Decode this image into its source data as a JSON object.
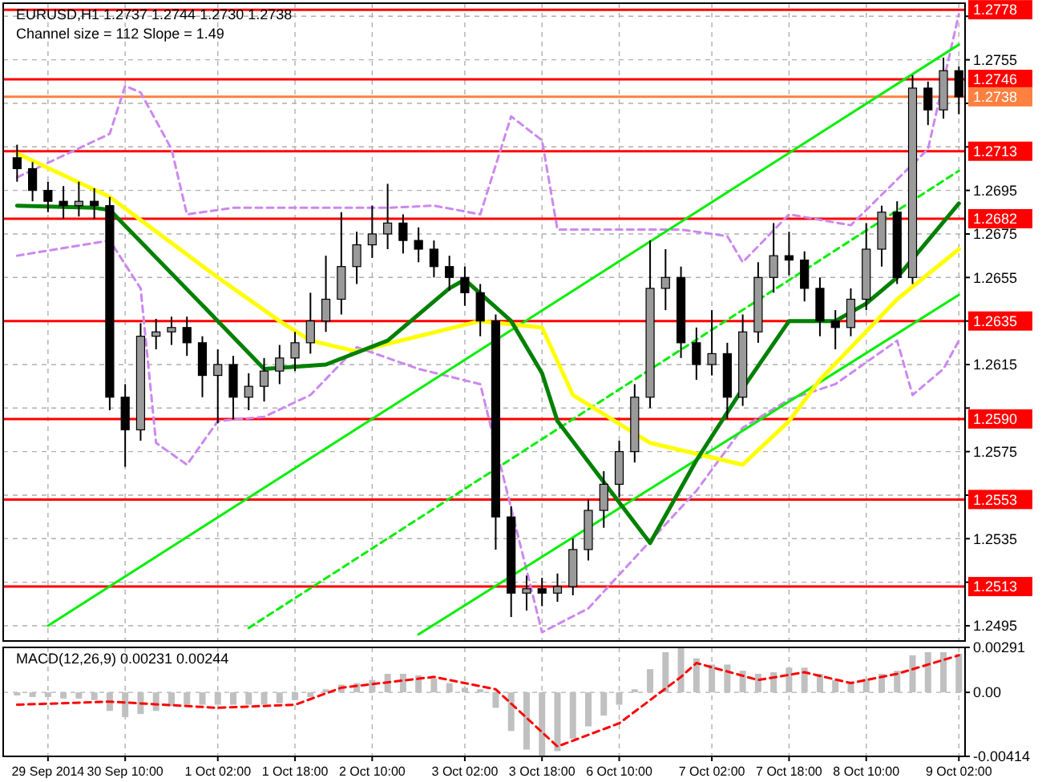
{
  "chart_data": [
    {
      "type": "candlestick",
      "title": "EURUSD,H1  1.2737 1.2744 1.2730 1.2738",
      "subtitle": "Channel size = 112 Slope = 1.49",
      "tick_labels": "y",
      "grid": true,
      "ylim": [
        1.2488,
        1.2781
      ],
      "yticks": [
        1.2495,
        {
          "value": 1.2515,
          "label": null
        },
        1.2535,
        {
          "value": 1.2555,
          "label": null
        },
        1.2575,
        {
          "value": 1.2595,
          "label": null
        },
        1.2615,
        {
          "value": 1.2635,
          "label": null
        },
        1.2655,
        1.2675,
        1.2695,
        {
          "value": 1.2715,
          "label": null
        },
        {
          "value": 1.2735,
          "label": null
        },
        1.2755,
        {
          "value": 1.2775,
          "label": null
        }
      ],
      "categories": [
        null,
        null,
        null,
        null,
        null,
        null,
        null,
        null,
        null,
        null,
        null,
        null,
        null,
        null,
        null,
        null,
        null,
        null,
        null,
        null,
        null,
        null,
        null,
        null,
        null,
        null,
        null,
        null,
        null,
        null,
        null,
        null,
        null,
        null,
        null,
        null,
        null,
        null,
        null,
        null,
        null,
        null,
        null,
        null,
        null,
        null,
        null,
        null,
        null,
        null,
        null,
        null,
        null,
        null,
        null,
        null,
        null,
        null,
        null,
        null,
        null,
        null
      ],
      "ohlc": [
        [
          1.271,
          1.2716,
          1.2699,
          1.2705
        ],
        [
          1.2705,
          1.2708,
          1.269,
          1.2695
        ],
        [
          1.2695,
          1.2699,
          1.2685,
          1.269
        ],
        [
          1.269,
          1.2697,
          1.2682,
          1.2688
        ],
        [
          1.2688,
          1.2699,
          1.2683,
          1.269
        ],
        [
          1.269,
          1.2696,
          1.2682,
          1.2688
        ],
        [
          1.2688,
          1.2692,
          1.2594,
          1.26
        ],
        [
          1.26,
          1.2606,
          1.2568,
          1.2585
        ],
        [
          1.2585,
          1.2634,
          1.258,
          1.2628
        ],
        [
          1.2628,
          1.2636,
          1.2622,
          1.263
        ],
        [
          1.263,
          1.2637,
          1.2624,
          1.2632
        ],
        [
          1.2632,
          1.2637,
          1.2619,
          1.2625
        ],
        [
          1.2625,
          1.2628,
          1.26,
          1.261
        ],
        [
          1.261,
          1.2622,
          1.2588,
          1.2615
        ],
        [
          1.2615,
          1.2619,
          1.259,
          1.26
        ],
        [
          1.26,
          1.2611,
          1.2594,
          1.2605
        ],
        [
          1.2605,
          1.2618,
          1.2598,
          1.2612
        ],
        [
          1.2612,
          1.2624,
          1.2606,
          1.2618
        ],
        [
          1.2618,
          1.263,
          1.2612,
          1.2625
        ],
        [
          1.2625,
          1.2648,
          1.262,
          1.2635
        ],
        [
          1.2635,
          1.2665,
          1.263,
          1.2645
        ],
        [
          1.2645,
          1.2685,
          1.2638,
          1.266
        ],
        [
          1.266,
          1.2676,
          1.2652,
          1.267
        ],
        [
          1.267,
          1.2688,
          1.2664,
          1.2675
        ],
        [
          1.2675,
          1.2698,
          1.2668,
          1.268
        ],
        [
          1.268,
          1.2684,
          1.2666,
          1.2672
        ],
        [
          1.2672,
          1.2678,
          1.2662,
          1.2668
        ],
        [
          1.2668,
          1.2672,
          1.2655,
          1.266
        ],
        [
          1.266,
          1.2665,
          1.2649,
          1.2655
        ],
        [
          1.2655,
          1.266,
          1.2642,
          1.2648
        ],
        [
          1.2648,
          1.2652,
          1.2628,
          1.2635
        ],
        [
          1.2635,
          1.2638,
          1.253,
          1.2545
        ],
        [
          1.2545,
          1.255,
          1.2499,
          1.251
        ],
        [
          1.251,
          1.2518,
          1.2502,
          1.2512
        ],
        [
          1.2512,
          1.2517,
          1.2504,
          1.251
        ],
        [
          1.251,
          1.2519,
          1.2506,
          1.2513
        ],
        [
          1.2513,
          1.2535,
          1.2509,
          1.253
        ],
        [
          1.253,
          1.2553,
          1.2525,
          1.2548
        ],
        [
          1.2548,
          1.2566,
          1.254,
          1.256
        ],
        [
          1.256,
          1.258,
          1.2554,
          1.2575
        ],
        [
          1.2575,
          1.2606,
          1.257,
          1.26
        ],
        [
          1.26,
          1.2672,
          1.2595,
          1.265
        ],
        [
          1.265,
          1.2668,
          1.264,
          1.2655
        ],
        [
          1.2655,
          1.266,
          1.2618,
          1.2625
        ],
        [
          1.2625,
          1.2632,
          1.2608,
          1.2615
        ],
        [
          1.2615,
          1.264,
          1.261,
          1.262
        ],
        [
          1.262,
          1.2625,
          1.259,
          1.26
        ],
        [
          1.26,
          1.2638,
          1.2596,
          1.263
        ],
        [
          1.263,
          1.2662,
          1.2625,
          1.2655
        ],
        [
          1.2655,
          1.268,
          1.2648,
          1.2665
        ],
        [
          1.2665,
          1.2676,
          1.2656,
          1.2663
        ],
        [
          1.2663,
          1.2667,
          1.2644,
          1.265
        ],
        [
          1.265,
          1.2655,
          1.2628,
          1.2635
        ],
        [
          1.2635,
          1.264,
          1.2622,
          1.2632
        ],
        [
          1.2632,
          1.265,
          1.2628,
          1.2645
        ],
        [
          1.2645,
          1.268,
          1.264,
          1.2668
        ],
        [
          1.2668,
          1.2688,
          1.266,
          1.2685
        ],
        [
          1.2685,
          1.269,
          1.2652,
          1.2655
        ],
        [
          1.2655,
          1.2748,
          1.2652,
          1.2742
        ],
        [
          1.2742,
          1.2745,
          1.2725,
          1.2732
        ],
        [
          1.2732,
          1.2756,
          1.2728,
          1.275
        ],
        [
          1.275,
          1.2752,
          1.273,
          1.2738
        ]
      ],
      "series": [
        {
          "type": "line",
          "color": "#cc88ee",
          "line_style": "dashed",
          "values": [
            1.2701,
            null,
            null,
            null,
            null,
            null,
            1.2721,
            1.2743,
            1.274,
            null,
            1.2714,
            1.2684,
            null,
            null,
            1.2687,
            null,
            null,
            null,
            null,
            null,
            null,
            null,
            null,
            null,
            1.2687,
            null,
            null,
            1.2688,
            null,
            null,
            1.2684,
            null,
            1.2729,
            null,
            1.2718,
            1.2677,
            null,
            null,
            null,
            null,
            null,
            null,
            null,
            1.2677,
            null,
            null,
            1.2674,
            1.2662,
            null,
            null,
            1.2684,
            null,
            null,
            null,
            1.2679,
            null,
            null,
            null,
            null,
            1.2714,
            null,
            1.2776
          ]
        },
        {
          "type": "line",
          "color": "#cc88ee",
          "line_style": "dashed",
          "values": [
            1.2665,
            null,
            null,
            null,
            null,
            null,
            1.2672,
            null,
            1.265,
            1.2579,
            null,
            1.2569,
            null,
            1.2589,
            null,
            null,
            1.2591,
            null,
            null,
            1.2601,
            null,
            null,
            1.2623,
            null,
            null,
            null,
            1.2613,
            null,
            null,
            null,
            1.2606,
            null,
            null,
            null,
            1.2492,
            null,
            null,
            1.2503,
            null,
            null,
            null,
            null,
            null,
            null,
            1.2557,
            null,
            null,
            1.2586,
            null,
            null,
            1.2599,
            null,
            null,
            1.2606,
            null,
            null,
            null,
            1.2626,
            1.2601,
            null,
            1.2613,
            1.2626
          ]
        },
        {
          "type": "line",
          "color": "#00ee00",
          "values": [
            null,
            null,
            1.2495,
            null,
            null,
            null,
            null,
            null,
            null,
            null,
            null,
            null,
            null,
            null,
            null,
            null,
            null,
            null,
            null,
            null,
            null,
            null,
            null,
            null,
            null,
            null,
            null,
            null,
            null,
            null,
            null,
            null,
            null,
            null,
            null,
            null,
            null,
            null,
            null,
            null,
            null,
            null,
            null,
            null,
            null,
            null,
            null,
            null,
            null,
            null,
            null,
            null,
            null,
            null,
            null,
            null,
            null,
            null,
            null,
            null,
            null,
            1.2762
          ]
        },
        {
          "type": "line",
          "color": "#00ee00",
          "values": [
            null,
            null,
            null,
            null,
            null,
            null,
            null,
            null,
            null,
            null,
            null,
            null,
            null,
            null,
            null,
            null,
            null,
            null,
            null,
            null,
            null,
            null,
            null,
            null,
            null,
            null,
            1.2491,
            null,
            null,
            null,
            null,
            null,
            null,
            null,
            null,
            null,
            null,
            null,
            null,
            null,
            null,
            null,
            null,
            null,
            null,
            null,
            null,
            null,
            null,
            null,
            null,
            null,
            null,
            null,
            null,
            null,
            null,
            null,
            null,
            null,
            null,
            1.2647
          ]
        },
        {
          "type": "line",
          "color": "#00ee00",
          "line_style": "dashed",
          "values": [
            null,
            null,
            null,
            null,
            null,
            null,
            null,
            null,
            null,
            null,
            null,
            null,
            null,
            null,
            null,
            1.2494,
            null,
            null,
            null,
            null,
            null,
            null,
            null,
            null,
            null,
            null,
            null,
            null,
            null,
            null,
            null,
            null,
            null,
            null,
            null,
            null,
            null,
            null,
            null,
            null,
            null,
            null,
            null,
            null,
            null,
            null,
            null,
            null,
            null,
            null,
            null,
            null,
            null,
            null,
            null,
            null,
            null,
            null,
            null,
            null,
            null,
            1.2704
          ]
        },
        {
          "type": "line",
          "color": "#ffff00",
          "values": [
            1.2712,
            null,
            null,
            null,
            null,
            null,
            1.2692,
            null,
            null,
            null,
            null,
            null,
            null,
            1.2655,
            null,
            null,
            null,
            1.2635,
            null,
            1.2626,
            null,
            null,
            1.2621,
            null,
            null,
            null,
            null,
            null,
            null,
            null,
            1.2635,
            null,
            null,
            null,
            1.2632,
            null,
            1.2601,
            null,
            null,
            null,
            null,
            1.2579,
            null,
            null,
            null,
            null,
            null,
            1.2569,
            null,
            null,
            1.2589,
            null,
            1.2608,
            null,
            null,
            null,
            null,
            1.2645,
            null,
            null,
            null,
            1.2668
          ]
        },
        {
          "type": "line",
          "color": "#008000",
          "values": [
            1.2688,
            null,
            null,
            null,
            null,
            1.2687,
            1.2686,
            null,
            null,
            null,
            null,
            null,
            null,
            1.2635,
            null,
            null,
            1.2613,
            null,
            null,
            null,
            1.2615,
            null,
            null,
            null,
            1.2626,
            null,
            null,
            null,
            1.265,
            1.2654,
            null,
            null,
            1.2635,
            null,
            1.2611,
            1.2589,
            null,
            null,
            null,
            null,
            null,
            1.2533,
            null,
            null,
            1.2571,
            null,
            null,
            1.2604,
            null,
            null,
            1.2635,
            null,
            null,
            1.2635,
            null,
            1.2643,
            null,
            1.2655,
            null,
            null,
            null,
            1.2689
          ]
        }
      ],
      "ref_lines": [
        {
          "axis": "y",
          "value": 1.2778,
          "label": "1.2778",
          "color": "#ff0000"
        },
        {
          "axis": "y",
          "value": 1.2746,
          "label": "1.2746",
          "color": "#ff0000"
        },
        {
          "axis": "y",
          "value": 1.2738,
          "label": "1.2738",
          "color": "#ff8040"
        },
        {
          "axis": "y",
          "value": 1.2713,
          "label": "1.2713",
          "color": "#ff0000"
        },
        {
          "axis": "y",
          "value": 1.2682,
          "label": "1.2682",
          "color": "#ff0000"
        },
        {
          "axis": "y",
          "value": 1.2635,
          "label": "1.2635",
          "color": "#ff0000"
        },
        {
          "axis": "y",
          "value": 1.259,
          "label": "1.2590",
          "color": "#ff0000"
        },
        {
          "axis": "y",
          "value": 1.2553,
          "label": "1.2553",
          "color": "#ff0000"
        },
        {
          "axis": "y",
          "value": 1.2513,
          "label": "1.2513",
          "color": "#ff0000"
        }
      ]
    },
    {
      "type": "bar",
      "title": "MACD(12,26,9) 0.00231 0.00244",
      "grid": true,
      "categories": [
        null,
        null,
        "29 Sep 2014",
        null,
        null,
        null,
        null,
        "30 Sep 10:00",
        null,
        null,
        null,
        null,
        null,
        "1 Oct 02:00",
        null,
        null,
        null,
        null,
        "1 Oct 18:00",
        null,
        null,
        null,
        null,
        "2 Oct 10:00",
        null,
        null,
        null,
        null,
        null,
        "3 Oct 02:00",
        null,
        null,
        null,
        null,
        "3 Oct 18:00",
        null,
        null,
        null,
        null,
        "6 Oct 10:00",
        null,
        null,
        null,
        null,
        null,
        "7 Oct 02:00",
        null,
        null,
        null,
        null,
        "7 Oct 18:00",
        null,
        null,
        null,
        null,
        "8 Oct 10:00",
        null,
        null,
        null,
        null,
        null,
        "9 Oct 02:00"
      ],
      "ylim": [
        -0.00414,
        0.00291
      ],
      "yticks": [
        -0.00414,
        {
          "value": 0,
          "label": "0.00"
        },
        0.00291
      ],
      "series": [
        {
          "color": "#c0c0c0",
          "values": [
            -0.0002,
            -0.0003,
            -0.0003,
            -0.0004,
            -0.0004,
            -0.0005,
            -0.0012,
            -0.0016,
            -0.0014,
            -0.0012,
            -0.0009,
            -0.0008,
            -0.0008,
            -0.0008,
            -0.0008,
            -0.0008,
            -0.0008,
            -0.0007,
            -0.0005,
            -0.0003,
            0.0002,
            0.0005,
            0.0006,
            0.0008,
            0.0012,
            0.0012,
            0.0011,
            0.0009,
            0.0006,
            0.0003,
            0.0002,
            -0.001,
            -0.0025,
            -0.0037,
            -0.0041,
            -0.0038,
            -0.003,
            -0.0022,
            -0.0015,
            -0.0008,
            0.0002,
            0.0015,
            0.0026,
            0.0029,
            0.0022,
            0.0018,
            0.0018,
            0.0014,
            0.0012,
            0.0013,
            0.0016,
            0.0016,
            0.0012,
            0.0008,
            0.0007,
            0.0009,
            0.0012,
            0.0014,
            0.0024,
            0.0026,
            0.0026,
            0.0025
          ]
        },
        {
          "type": "line",
          "color": "#ff0000",
          "line_style": "dashed",
          "values": [
            -0.0008,
            null,
            null,
            null,
            null,
            null,
            -0.0006,
            null,
            null,
            null,
            null,
            null,
            null,
            -0.001,
            null,
            null,
            null,
            null,
            -0.0008,
            null,
            null,
            0.0003,
            null,
            null,
            null,
            null,
            null,
            0.001,
            null,
            null,
            null,
            0.0002,
            null,
            null,
            null,
            -0.0035,
            null,
            null,
            null,
            -0.002,
            null,
            null,
            null,
            0.001,
            0.0019,
            null,
            null,
            null,
            0.0008,
            null,
            null,
            0.0013,
            null,
            null,
            0.0006,
            null,
            null,
            0.0012,
            null,
            null,
            null,
            0.0024
          ]
        }
      ]
    }
  ]
}
